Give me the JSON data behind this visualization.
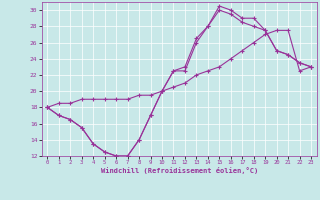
{
  "xlabel": "Windchill (Refroidissement éolien,°C)",
  "bg_color": "#c8e8e8",
  "line_color": "#993399",
  "xlim": [
    -0.5,
    23.5
  ],
  "ylim": [
    12,
    31
  ],
  "yticks": [
    12,
    14,
    16,
    18,
    20,
    22,
    24,
    26,
    28,
    30
  ],
  "xticks": [
    0,
    1,
    2,
    3,
    4,
    5,
    6,
    7,
    8,
    9,
    10,
    11,
    12,
    13,
    14,
    15,
    16,
    17,
    18,
    19,
    20,
    21,
    22,
    23
  ],
  "line1_x": [
    0,
    1,
    2,
    3,
    4,
    5,
    6,
    7,
    8,
    9,
    10,
    11,
    12,
    13,
    14,
    15,
    16,
    17,
    18,
    19,
    20,
    21,
    22,
    23
  ],
  "line1_y": [
    18,
    17,
    16.5,
    15.5,
    13.5,
    12.5,
    12,
    12,
    14,
    17,
    20,
    22.5,
    23,
    26.5,
    28,
    30.5,
    30,
    29,
    29,
    27.5,
    25,
    24.5,
    23.5,
    23
  ],
  "line2_x": [
    0,
    1,
    2,
    3,
    4,
    5,
    6,
    7,
    8,
    9,
    10,
    11,
    12,
    13,
    14,
    15,
    16,
    17,
    18,
    19,
    20,
    21,
    22,
    23
  ],
  "line2_y": [
    18,
    17,
    16.5,
    15.5,
    13.5,
    12.5,
    12,
    12,
    14,
    17,
    20,
    22.5,
    22.5,
    26,
    28,
    30,
    29.5,
    28.5,
    28,
    27.5,
    25,
    24.5,
    23.5,
    23
  ],
  "line3_x": [
    0,
    1,
    2,
    3,
    4,
    5,
    6,
    7,
    8,
    9,
    10,
    11,
    12,
    13,
    14,
    15,
    16,
    17,
    18,
    19,
    20,
    21,
    22,
    23
  ],
  "line3_y": [
    18,
    18.5,
    18.5,
    19,
    19,
    19,
    19,
    19,
    19.5,
    19.5,
    20,
    20.5,
    21,
    22,
    22.5,
    23,
    24,
    25,
    26,
    27,
    27.5,
    27.5,
    22.5,
    23
  ]
}
